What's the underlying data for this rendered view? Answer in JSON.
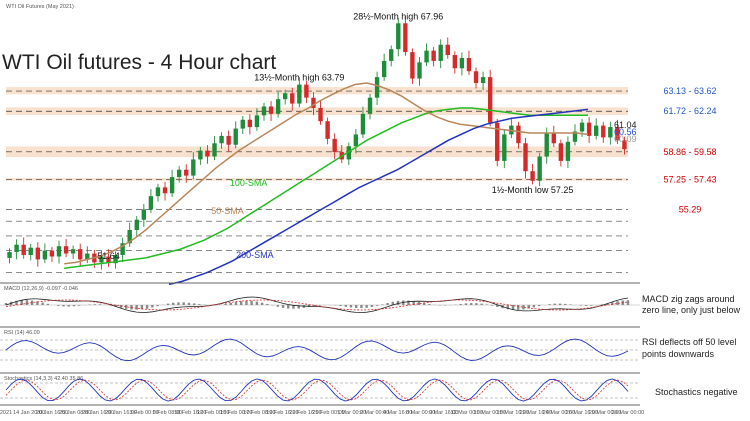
{
  "chart_data": {
    "type": "candlestick",
    "title": "WTI Oil futures - 4 Hour chart",
    "header_label": "WTI Oil Futures (May 2021)",
    "x_labels": [
      "2021",
      "14 Jan 20:00",
      "20 Jan 16:00",
      "25 Jan 08:00",
      "28 Jan 16:00",
      "29 Jan 16:00",
      "3 Feb 00:00",
      "5 Feb 08:00",
      "10 Feb 16:00",
      "12 Feb 00:00",
      "15 Feb 00:00",
      "17 Feb 08:00",
      "19 Feb 16:00",
      "22 Feb 16:00",
      "25 Feb 00:00",
      "1 Mar 00:00",
      "2 Mar 00:00",
      "4 Mar 16:00",
      "8 Mar 00:00",
      "9 Mar 16:00",
      "12 Mar 00:00",
      "16 Mar 00:00",
      "18 Mar 16:00",
      "22 Mar 16:00",
      "24 Mar 00:00",
      "26 Mar 16:00",
      "29 Mar 00:00",
      "31 Mar 00:00"
    ],
    "ylim": [
      50.5,
      69.0
    ],
    "close": [
      52.4,
      52.9,
      52.2,
      52.7,
      51.9,
      52.5,
      52.1,
      52.8,
      52.3,
      52.6,
      51.9,
      52.3,
      51.7,
      52.1,
      51.64,
      52.2,
      53.0,
      53.9,
      54.6,
      55.3,
      56.2,
      56.8,
      56.4,
      57.5,
      58.0,
      57.6,
      58.7,
      59.3,
      58.9,
      59.8,
      60.3,
      59.7,
      60.8,
      61.4,
      60.9,
      61.7,
      62.3,
      61.8,
      62.8,
      63.2,
      62.5,
      63.79,
      62.9,
      62.2,
      61.3,
      60.1,
      59.2,
      58.7,
      59.6,
      60.4,
      61.8,
      62.9,
      64.3,
      65.4,
      66.2,
      67.96,
      66.0,
      64.2,
      65.3,
      66.1,
      65.4,
      66.5,
      65.8,
      64.9,
      65.6,
      64.7,
      63.9,
      64.3,
      61.2,
      58.6,
      60.4,
      61.0,
      59.8,
      57.9,
      57.25,
      58.9,
      60.5,
      59.8,
      58.6,
      59.9,
      60.6,
      61.2,
      60.3,
      61.0,
      60.2,
      60.9,
      60.0,
      59.4
    ],
    "horizontal_levels": [
      {
        "label": "63.13 - 63.62",
        "value": 63.35,
        "zone": [
          63.13,
          63.62
        ],
        "color": "#2255cc",
        "style": "dashed"
      },
      {
        "label": "61.72 - 62.24",
        "value": 61.98,
        "zone": [
          61.72,
          62.24
        ],
        "color": "#2255cc",
        "style": "dashed"
      },
      {
        "label": "61.04",
        "value": 61.04,
        "color": "#222222",
        "style": "label"
      },
      {
        "label": "60.56",
        "value": 60.56,
        "color": "#2255cc",
        "style": "label"
      },
      {
        "label": "60.09",
        "value": 60.09,
        "color": "#999999",
        "style": "label"
      },
      {
        "label": "58.86 - 59.58",
        "value": 59.22,
        "zone": [
          58.86,
          59.58
        ],
        "color": "#cc0000",
        "style": "dashed"
      },
      {
        "label": "57.25 - 57.43",
        "value": 57.34,
        "zone": [
          57.25,
          57.43
        ],
        "color": "#cc0000",
        "style": "dashed"
      },
      {
        "label": "55.29",
        "value": 55.29,
        "color": "#cc0000",
        "style": "dashed"
      }
    ],
    "extra_grid_levels": [
      51.0,
      52.5,
      53.5,
      54.5
    ],
    "annotations": [
      {
        "text": "28½-Month high 67.96",
        "value": 67.96,
        "index": 55
      },
      {
        "text": "13½-Month high 63.79",
        "value": 63.79,
        "index": 41
      },
      {
        "text": "1½-Month low 57.25",
        "value": 57.25,
        "index": 74
      },
      {
        "text": "51.64",
        "value": 51.64,
        "index": 14
      }
    ],
    "series": [
      {
        "name": "100-SMA",
        "color": "#22bb22",
        "values": [
          51.3,
          51.4,
          51.5,
          51.6,
          51.7,
          51.8,
          51.9,
          52.0,
          52.2,
          52.4,
          52.6,
          52.9,
          53.2,
          53.6,
          54.0,
          54.5,
          55.0,
          55.5,
          56.0,
          56.5,
          57.0,
          57.5,
          58.0,
          58.5,
          59.0,
          59.5,
          60.0,
          60.4,
          60.8,
          61.2,
          61.5,
          61.8,
          62.0,
          62.1,
          62.2,
          62.2,
          62.1,
          62.0,
          61.9,
          61.8,
          61.7,
          61.7,
          61.7,
          61.7,
          61.7,
          61.7
        ]
      },
      {
        "name": "50-SMA",
        "color": "#b8875a",
        "values": [
          51.6,
          51.7,
          51.9,
          52.1,
          52.4,
          52.8,
          53.3,
          53.9,
          54.6,
          55.3,
          56.0,
          56.7,
          57.4,
          58.1,
          58.7,
          59.3,
          59.8,
          60.3,
          60.8,
          61.3,
          61.8,
          62.2,
          62.7,
          63.1,
          63.5,
          63.8,
          63.9,
          63.7,
          63.4,
          63.0,
          62.5,
          62.0,
          61.6,
          61.3,
          61.1,
          61.0,
          60.9,
          60.8,
          60.7,
          60.6,
          60.5,
          60.5,
          60.5,
          60.5,
          60.5,
          60.4
        ]
      },
      {
        "name": "200-SMA",
        "color": "#2233bb",
        "values": [
          50.2,
          50.4,
          50.7,
          51.0,
          51.4,
          51.8,
          52.3,
          52.8,
          53.3,
          53.8,
          54.3,
          54.8,
          55.3,
          55.8,
          56.3,
          56.8,
          57.2,
          57.6,
          58.0,
          58.5,
          59.0,
          59.5,
          60.0,
          60.4,
          60.8,
          61.1,
          61.3,
          61.5,
          61.6,
          61.7,
          61.8,
          61.9,
          62.0,
          62.1
        ]
      }
    ],
    "legend": [
      {
        "name": "100-SMA",
        "color": "#22bb22"
      },
      {
        "name": "50-SMA",
        "color": "#b8875a"
      },
      {
        "name": "200-SMA",
        "color": "#2233bb"
      }
    ]
  },
  "indicators": {
    "macd": {
      "header": "MACD (12,26,9) -0.097 -0.046",
      "note_line1": "MACD zig zags around",
      "note_line2": "zero line, only just below"
    },
    "rsi": {
      "header": "RSI (14) 46.09",
      "note_line1": "RSI deflects off 50 level",
      "note_line2": "points downwards"
    },
    "stoch": {
      "header": "Stochastics (14,3,3) 42.40 35.86",
      "note_line1": "Stochastics negative"
    }
  },
  "colors": {
    "up": "#1f8c3a",
    "down": "#d42a2a",
    "frame": "#555555",
    "grid": "#333333"
  }
}
